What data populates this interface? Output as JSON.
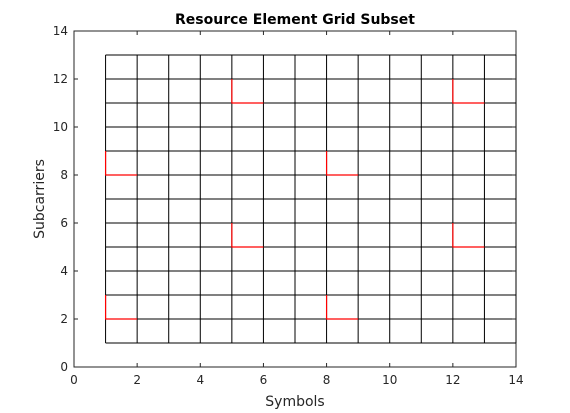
{
  "chart_data": {
    "type": "heatmap",
    "title": "Resource Element Grid Subset",
    "xlabel": "Symbols",
    "ylabel": "Subcarriers",
    "xlim": [
      0,
      14
    ],
    "ylim": [
      0,
      14
    ],
    "xticks": [
      0,
      2,
      4,
      6,
      8,
      10,
      12,
      14
    ],
    "yticks": [
      0,
      2,
      4,
      6,
      8,
      10,
      12,
      14
    ],
    "grid_x_range": [
      1,
      14
    ],
    "grid_y_range": [
      1,
      13
    ],
    "grid_color": "#000000",
    "highlight_color": "#ff0000",
    "highlighted_cells": [
      {
        "symbol": 1,
        "subcarrier": 2
      },
      {
        "symbol": 8,
        "subcarrier": 2
      },
      {
        "symbol": 5,
        "subcarrier": 5
      },
      {
        "symbol": 12,
        "subcarrier": 5
      },
      {
        "symbol": 1,
        "subcarrier": 8
      },
      {
        "symbol": 8,
        "subcarrier": 8
      },
      {
        "symbol": 5,
        "subcarrier": 11
      },
      {
        "symbol": 12,
        "subcarrier": 11
      }
    ],
    "grid": false,
    "legend": "none"
  }
}
